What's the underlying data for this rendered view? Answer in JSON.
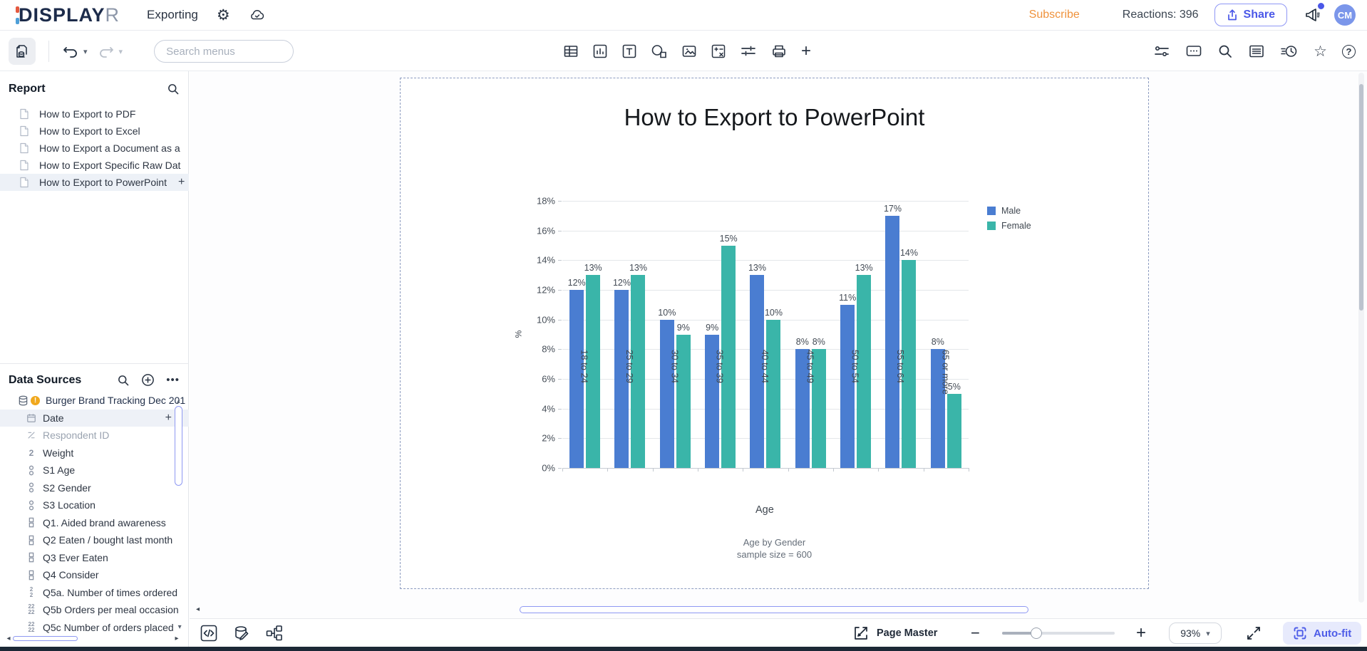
{
  "header": {
    "logo_d": "D",
    "logo_main": "ISPLAY",
    "logo_r": "R",
    "menu": "Exporting",
    "subscribe": "Subscribe",
    "reactions": "Reactions: 396",
    "share_label": "Share",
    "avatar_initials": "CM"
  },
  "toolbar": {
    "search_placeholder": "Search menus"
  },
  "icons": {
    "gear": "⚙",
    "ellipsis": "•••",
    "star": "☆",
    "help": "?",
    "plus": "+",
    "minus": "−",
    "caret_down": "▾",
    "caret_up": "▴",
    "arrow_left": "◂",
    "arrow_right": "▸"
  },
  "report": {
    "title": "Report",
    "items": [
      {
        "label": "How to Export to PDF",
        "selected": false
      },
      {
        "label": "How to Export to Excel",
        "selected": false
      },
      {
        "label": "How to Export a Document as a",
        "selected": false
      },
      {
        "label": "How to Export Specific Raw Dat",
        "selected": false
      },
      {
        "label": "How to Export to PowerPoint",
        "selected": true,
        "plus": true
      }
    ]
  },
  "data_sources": {
    "title": "Data Sources",
    "items": [
      {
        "label": "Burger Brand Tracking Dec 201",
        "icon": "database",
        "root": true,
        "warning": true
      },
      {
        "label": "Date",
        "icon": "calendar",
        "selected": true,
        "plus": true
      },
      {
        "label": "Respondent ID",
        "icon": "slash",
        "muted": true
      },
      {
        "label": "Weight",
        "icon": "numeric"
      },
      {
        "label": "S1 Age",
        "icon": "nominal"
      },
      {
        "label": "S2 Gender",
        "icon": "nominal"
      },
      {
        "label": "S3 Location",
        "icon": "nominal"
      },
      {
        "label": "Q1. Aided brand awareness",
        "icon": "binary"
      },
      {
        "label": "Q2 Eaten / bought last month",
        "icon": "binary"
      },
      {
        "label": "Q3 Ever Eaten",
        "icon": "binary"
      },
      {
        "label": "Q4 Consider",
        "icon": "binary"
      },
      {
        "label": "Q5a. Number of times ordered",
        "icon": "numstack"
      },
      {
        "label": "Q5b Orders per meal occasion",
        "icon": "numgrid"
      },
      {
        "label": "Q5c Number of orders placed",
        "icon": "numgrid",
        "caret": true
      }
    ]
  },
  "canvas": {
    "page_title": "How to Export to PowerPoint"
  },
  "chart_data": {
    "type": "bar",
    "title": "",
    "categories": [
      "18 to 24",
      "25 to 29",
      "30 to 34",
      "35 to 39",
      "40 to 44",
      "45 to 49",
      "50 to 54",
      "55 to 64",
      "65 or more"
    ],
    "series": [
      {
        "name": "Male",
        "color": "#4a7dd1",
        "values": [
          12,
          12,
          10,
          9,
          13,
          8,
          11,
          17,
          8
        ]
      },
      {
        "name": "Female",
        "color": "#3ab5a9",
        "values": [
          13,
          13,
          9,
          15,
          10,
          8,
          13,
          14,
          5
        ]
      }
    ],
    "value_suffix": "%",
    "xlabel": "Age",
    "ylabel": "%",
    "ylim": [
      0,
      18
    ],
    "ytick_step": 2,
    "yticks": [
      "0%",
      "2%",
      "4%",
      "6%",
      "8%",
      "10%",
      "12%",
      "14%",
      "16%",
      "18%"
    ],
    "grid": true,
    "legend_position": "top-right",
    "footnote_line1": "Age by Gender",
    "footnote_line2": "sample size = 600"
  },
  "statusbar": {
    "page_master": "Page Master",
    "zoom_value": "93%",
    "autofit": "Auto-fit"
  }
}
